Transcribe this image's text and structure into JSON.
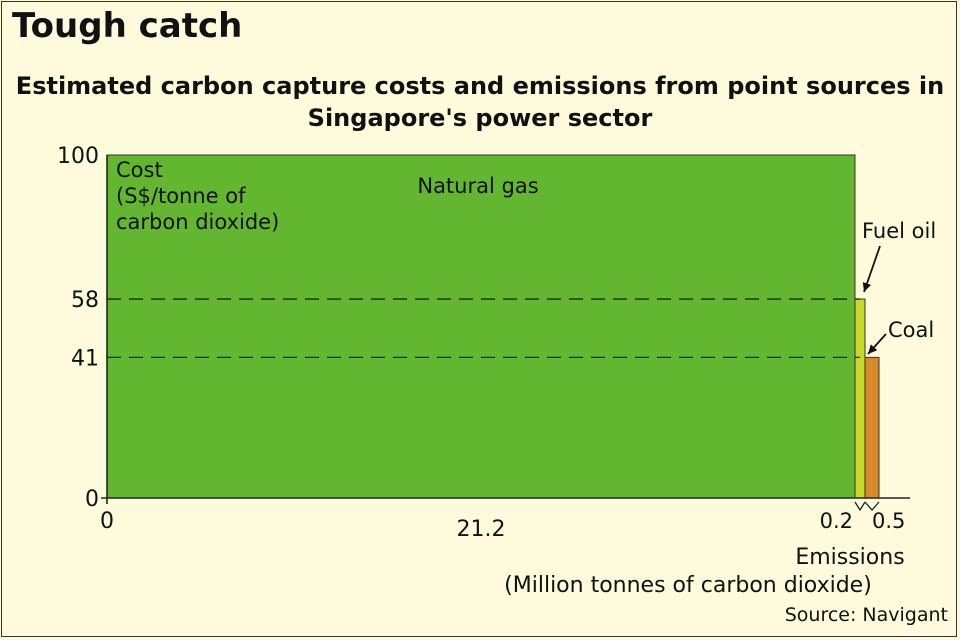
{
  "headline": "Tough catch",
  "source": "Source: Navigant",
  "chart_data": {
    "type": "bar",
    "title": "Estimated carbon capture costs and emissions from point sources in Singapore's power sector",
    "ylabel": [
      "Cost",
      "(S$/tonne of",
      "carbon dioxide)"
    ],
    "xlabel": [
      "Emissions",
      "(Million tonnes of carbon dioxide)"
    ],
    "ylim": [
      0,
      100
    ],
    "y_ticks": [
      "100",
      "58",
      "41",
      "0"
    ],
    "y_tick_values": [
      100,
      58,
      41,
      0
    ],
    "x_origin_label": "0",
    "bars": [
      {
        "name": "Natural gas",
        "cost": 100,
        "emissions": 21.2,
        "emissions_label": "21.2",
        "color": "#63b62f"
      },
      {
        "name": "Fuel oil",
        "cost": 58,
        "emissions": 0.2,
        "emissions_label": "0.2",
        "color": "#c8d82a"
      },
      {
        "name": "Coal",
        "cost": 41,
        "emissions": 0.5,
        "emissions_label": "0.5",
        "color": "#d68a2c"
      }
    ],
    "reference_lines": [
      58,
      41
    ],
    "grid": false,
    "legend": "none"
  }
}
